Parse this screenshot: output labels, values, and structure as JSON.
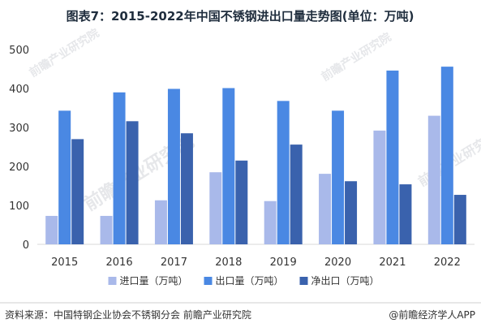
{
  "chart_data": {
    "type": "bar",
    "title": "图表7：2015-2022年中国不锈钢进出口量走势图(单位：万吨)",
    "categories": [
      "2015",
      "2016",
      "2017",
      "2018",
      "2019",
      "2020",
      "2021",
      "2022"
    ],
    "series": [
      {
        "name": "进口量（万吨）",
        "color": "#a9b9ea",
        "values": [
          73,
          73,
          113,
          185,
          111,
          181,
          292,
          330
        ]
      },
      {
        "name": "出口量（万吨）",
        "color": "#4a88e3",
        "values": [
          343,
          390,
          399,
          401,
          368,
          343,
          446,
          456
        ]
      },
      {
        "name": "净出口（万吨）",
        "color": "#3a62ad",
        "values": [
          270,
          316,
          285,
          215,
          256,
          162,
          154,
          127
        ]
      }
    ],
    "yticks": [
      0,
      100,
      200,
      300,
      400,
      500
    ],
    "ylim": [
      0,
      500
    ],
    "grid": false,
    "legend_position": "bottom"
  },
  "footer": {
    "source": "资料来源：中国特钢企业协会不锈钢分会 前瞻产业研究院",
    "brand": "@前瞻经济学人APP"
  },
  "watermark": {
    "text": "前瞻产业研究院"
  }
}
